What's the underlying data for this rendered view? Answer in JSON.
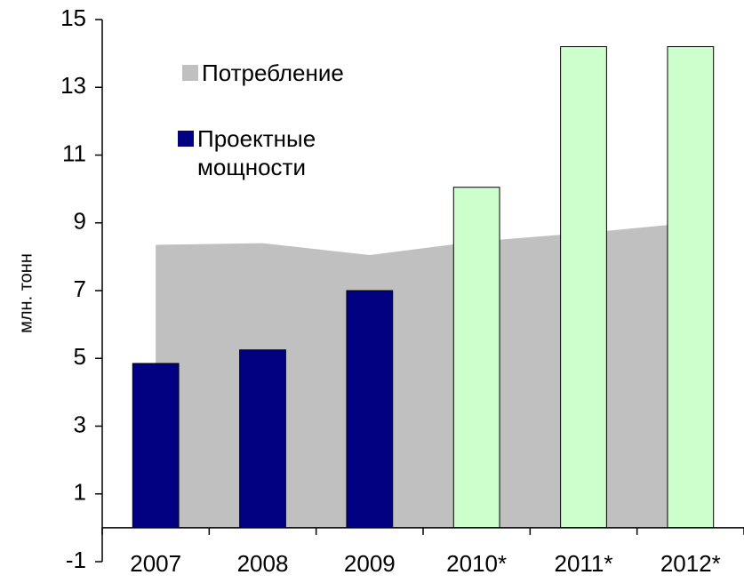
{
  "chart_data": {
    "type": "bar",
    "y_label": "млн. тонн",
    "categories": [
      "2007",
      "2008",
      "2009",
      "2010*",
      "2011*",
      "2012*"
    ],
    "series": [
      {
        "name": "Потребление",
        "type": "area",
        "color": "#c0c0c0",
        "values": [
          8.35,
          8.4,
          8.05,
          8.45,
          8.7,
          9.0
        ]
      },
      {
        "name": "Проектные мощности",
        "type": "bar",
        "color": "#000080",
        "colors": [
          "#000080",
          "#000080",
          "#000080",
          "#ccffcc",
          "#ccffcc",
          "#ccffcc"
        ],
        "values": [
          4.85,
          5.25,
          7.0,
          10.05,
          14.2,
          14.2
        ]
      }
    ],
    "ylim": [
      -1,
      15
    ],
    "yticks": [
      -1,
      1,
      3,
      5,
      7,
      9,
      11,
      13,
      15
    ]
  }
}
